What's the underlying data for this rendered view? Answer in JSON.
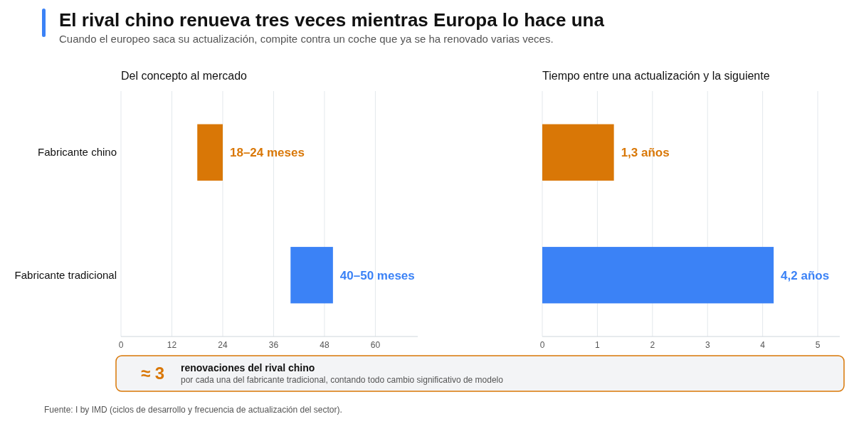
{
  "chart_data": [
    {
      "type": "other",
      "title": "El rival chino renueva tres veces mientras Europa lo hace una",
      "subtitle": "Cuando el europeo saca su actualización, compite contra un coche que ya se ha renovado varias veces.",
      "annotations": [
        "Fuente: I by IMD (ciclos de desarrollo y frecuencia de actualización del sector)."
      ]
    },
    {
      "type": "bar",
      "orientation": "horizontal",
      "title": "Del concepto al mercado",
      "categories": [
        "Fabricante chino",
        "Fabricante tradicional"
      ],
      "base": [
        18,
        40
      ],
      "values": [
        6,
        10
      ],
      "colors": [
        "#d97706",
        "#3b82f6"
      ],
      "value_labels": [
        "18–24 meses",
        "40–50 meses"
      ],
      "xlim": [
        0,
        70
      ],
      "xticks": [
        0,
        12,
        24,
        36,
        48,
        60
      ],
      "grid": "x"
    },
    {
      "type": "bar",
      "orientation": "horizontal",
      "title": "Tiempo entre una actualización y la siguiente",
      "categories": [
        null,
        null
      ],
      "values": [
        1.3,
        4.2
      ],
      "colors": [
        "#d97706",
        "#3b82f6"
      ],
      "value_labels": [
        "1,3 años",
        "4,2 años"
      ],
      "xlim": [
        0,
        5.4
      ],
      "xticks": [
        0,
        1,
        2,
        3,
        4,
        5
      ],
      "grid": "x",
      "tick_labels": "x"
    },
    {
      "type": "other",
      "annotations": [
        "≈ 3",
        "renovaciones del rival chino",
        "por cada una del fabricante tradicional, contando todo cambio significativo de modelo"
      ]
    }
  ]
}
